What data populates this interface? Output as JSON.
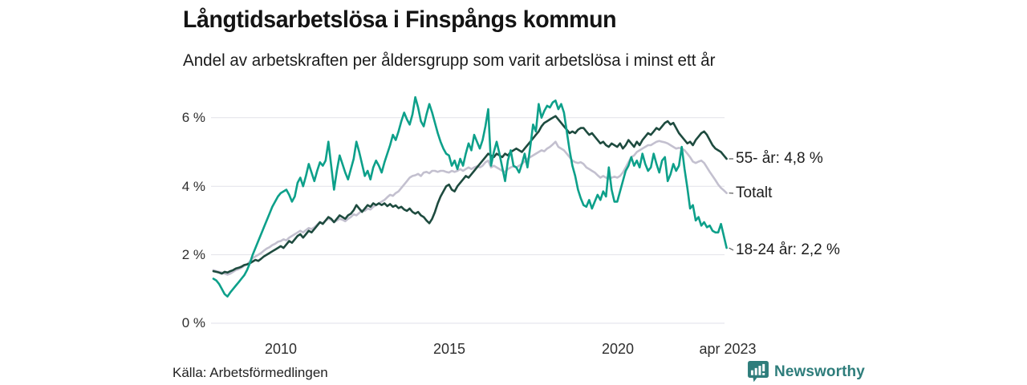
{
  "theme": {
    "background": "#ffffff",
    "grid_color": "#e2e2e8",
    "axis_text_color": "#2e2e2e",
    "connector_color": "#555555",
    "brand_color": "#2e7d7b",
    "series_teal": "#0da08a",
    "series_dark_green": "#1e4b3f",
    "series_gray": "#c3c0cf"
  },
  "brand": {
    "name": "Newsworthy",
    "logo_icon": "speech-bubble-bar-chart-icon"
  },
  "chart_data": {
    "type": "line",
    "title": "Långtidsarbetslösa i Finspångs kommun",
    "subtitle": "Andel av arbetskraften per åldersgrupp som varit arbetslösa i minst ett år",
    "source": "Källa: Arbetsförmedlingen",
    "grid": "horizontal-only",
    "legend_position": "right-end-labels",
    "x_axis": {
      "frequency": "monthly",
      "start": "2008-01",
      "end": "2023-04",
      "ticks": [
        {
          "label": "2010"
        },
        {
          "label": "2015"
        },
        {
          "label": "2020"
        },
        {
          "label": "apr 2023"
        }
      ]
    },
    "y_axis": {
      "unit": "%",
      "range": [
        0,
        6.9
      ],
      "ticks": [
        {
          "label": "0 %",
          "value": 0
        },
        {
          "label": "2 %",
          "value": 2
        },
        {
          "label": "4 %",
          "value": 4
        },
        {
          "label": "6 %",
          "value": 6
        }
      ]
    },
    "series": [
      {
        "name": "55- år",
        "end_label": "55- år: 4,8 %",
        "end_value": 4.8,
        "color": "#1e4b3f",
        "values": [
          1.52,
          1.5,
          1.48,
          1.45,
          1.5,
          1.48,
          1.52,
          1.55,
          1.6,
          1.62,
          1.65,
          1.7,
          1.72,
          1.75,
          1.8,
          1.85,
          1.82,
          1.88,
          1.95,
          2.0,
          2.05,
          2.1,
          2.15,
          2.2,
          2.25,
          2.2,
          2.3,
          2.4,
          2.35,
          2.45,
          2.55,
          2.6,
          2.5,
          2.6,
          2.7,
          2.65,
          2.75,
          2.85,
          2.95,
          2.9,
          3.0,
          3.1,
          3.05,
          2.95,
          3.05,
          3.15,
          3.1,
          3.05,
          3.15,
          3.2,
          3.3,
          3.45,
          3.35,
          3.25,
          3.35,
          3.45,
          3.4,
          3.5,
          3.45,
          3.5,
          3.45,
          3.5,
          3.42,
          3.48,
          3.4,
          3.44,
          3.36,
          3.4,
          3.32,
          3.28,
          3.35,
          3.25,
          3.2,
          3.25,
          3.15,
          3.1,
          3.0,
          2.92,
          3.05,
          3.25,
          3.5,
          3.7,
          3.85,
          4.0,
          4.05,
          3.9,
          3.85,
          4.0,
          4.1,
          4.2,
          4.3,
          4.25,
          4.35,
          4.45,
          4.55,
          4.65,
          4.75,
          4.85,
          4.95,
          4.9,
          4.85,
          4.95,
          4.9,
          4.85,
          4.95,
          4.9,
          5.0,
          5.05,
          5.1,
          5.05,
          5.0,
          5.1,
          5.2,
          5.3,
          5.4,
          5.5,
          5.6,
          5.75,
          5.85,
          5.9,
          5.95,
          6.0,
          6.05,
          5.95,
          5.85,
          5.75,
          5.65,
          5.55,
          5.6,
          5.55,
          5.65,
          5.7,
          5.7,
          5.6,
          5.5,
          5.55,
          5.45,
          5.35,
          5.25,
          5.3,
          5.2,
          5.15,
          5.25,
          5.2,
          5.15,
          5.25,
          5.1,
          5.2,
          5.35,
          5.25,
          5.15,
          5.3,
          5.2,
          5.35,
          5.45,
          5.55,
          5.5,
          5.6,
          5.7,
          5.65,
          5.75,
          5.85,
          5.9,
          5.8,
          5.85,
          5.7,
          5.55,
          5.45,
          5.35,
          5.25,
          5.3,
          5.2,
          5.35,
          5.45,
          5.55,
          5.6,
          5.5,
          5.35,
          5.2,
          5.1,
          5.05,
          5.0,
          4.9,
          4.8
        ]
      },
      {
        "name": "Totalt",
        "end_label": "Totalt",
        "end_value": 3.8,
        "color": "#c3c0cf",
        "values": [
          1.55,
          1.52,
          1.5,
          1.48,
          1.45,
          1.42,
          1.45,
          1.5,
          1.55,
          1.58,
          1.62,
          1.68,
          1.72,
          1.8,
          1.9,
          1.95,
          2.0,
          2.05,
          2.12,
          2.18,
          2.22,
          2.28,
          2.32,
          2.38,
          2.4,
          2.45,
          2.42,
          2.5,
          2.55,
          2.6,
          2.65,
          2.7,
          2.65,
          2.72,
          2.78,
          2.75,
          2.8,
          2.88,
          2.95,
          2.92,
          3.0,
          3.05,
          3.02,
          2.95,
          3.0,
          3.05,
          3.02,
          2.98,
          3.05,
          3.1,
          3.18,
          3.15,
          3.22,
          3.3,
          3.28,
          3.35,
          3.32,
          3.4,
          3.45,
          3.5,
          3.55,
          3.6,
          3.68,
          3.75,
          3.72,
          3.8,
          3.85,
          3.95,
          4.05,
          4.15,
          4.25,
          4.3,
          4.32,
          4.36,
          4.3,
          4.4,
          4.42,
          4.38,
          4.45,
          4.45,
          4.42,
          4.45,
          4.45,
          4.42,
          4.4,
          4.45,
          4.42,
          4.45,
          4.5,
          4.45,
          4.5,
          4.55,
          4.5,
          4.55,
          4.58,
          4.55,
          4.6,
          4.7,
          4.75,
          4.55,
          4.6,
          4.55,
          4.5,
          4.45,
          4.42,
          4.5,
          4.55,
          4.58,
          4.55,
          4.6,
          4.65,
          4.72,
          4.8,
          4.85,
          4.9,
          4.95,
          5.0,
          5.05,
          5.02,
          5.1,
          5.15,
          5.22,
          5.3,
          5.15,
          5.1,
          5.05,
          4.95,
          4.85,
          4.75,
          4.7,
          4.68,
          4.7,
          4.65,
          4.55,
          4.5,
          4.45,
          4.4,
          4.32,
          4.25,
          4.3,
          4.25,
          4.22,
          4.25,
          4.28,
          4.25,
          4.3,
          4.4,
          4.55,
          4.7,
          4.85,
          4.9,
          5.0,
          5.05,
          5.1,
          5.15,
          5.2,
          5.2,
          5.25,
          5.3,
          5.32,
          5.3,
          5.28,
          5.25,
          5.2,
          5.15,
          5.1,
          5.12,
          5.1,
          5.05,
          4.95,
          4.85,
          4.72,
          4.68,
          4.72,
          4.75,
          4.68,
          4.55,
          4.42,
          4.3,
          4.18,
          4.05,
          3.95,
          3.88,
          3.8
        ]
      },
      {
        "name": "18-24 år",
        "end_label": "18-24 år: 2,2 %",
        "end_value": 2.2,
        "color": "#0da08a",
        "values": [
          1.3,
          1.25,
          1.15,
          1.0,
          0.85,
          0.78,
          0.9,
          1.0,
          1.1,
          1.2,
          1.3,
          1.4,
          1.55,
          1.75,
          2.0,
          2.2,
          2.4,
          2.6,
          2.8,
          3.0,
          3.2,
          3.4,
          3.55,
          3.7,
          3.8,
          3.85,
          3.9,
          3.75,
          3.55,
          3.7,
          4.1,
          4.25,
          4.0,
          4.3,
          4.65,
          4.4,
          4.15,
          4.45,
          4.7,
          4.6,
          4.75,
          5.3,
          4.6,
          3.9,
          4.45,
          4.9,
          4.65,
          4.4,
          4.2,
          4.5,
          4.8,
          5.3,
          5.0,
          4.65,
          4.3,
          4.45,
          4.2,
          4.55,
          4.75,
          4.6,
          4.4,
          4.7,
          4.95,
          5.2,
          5.5,
          5.35,
          5.6,
          5.9,
          6.15,
          5.95,
          5.8,
          6.1,
          6.6,
          6.3,
          5.9,
          5.75,
          6.1,
          6.4,
          6.15,
          5.85,
          5.55,
          5.3,
          5.1,
          4.95,
          4.9,
          4.6,
          4.75,
          4.5,
          4.8,
          4.6,
          4.95,
          5.25,
          5.05,
          5.5,
          5.3,
          5.1,
          5.35,
          5.75,
          6.25,
          4.6,
          5.0,
          5.3,
          4.95,
          4.55,
          4.15,
          4.75,
          5.05,
          4.6,
          4.55,
          4.4,
          4.65,
          4.95,
          4.55,
          5.15,
          5.8,
          5.6,
          6.4,
          6.0,
          6.2,
          6.35,
          6.3,
          6.45,
          6.5,
          6.25,
          6.4,
          6.15,
          5.6,
          5.05,
          4.6,
          4.3,
          3.9,
          3.65,
          3.45,
          3.4,
          3.6,
          3.35,
          3.55,
          3.75,
          3.6,
          3.85,
          3.7,
          4.55,
          3.9,
          3.55,
          3.55,
          3.85,
          4.15,
          4.45,
          4.6,
          4.85,
          4.6,
          4.75,
          4.55,
          4.95,
          4.65,
          4.45,
          4.55,
          4.95,
          4.65,
          4.4,
          4.75,
          4.85,
          4.15,
          4.35,
          4.65,
          4.45,
          4.6,
          5.15,
          4.5,
          3.95,
          3.35,
          3.45,
          3.0,
          3.1,
          2.85,
          2.95,
          2.8,
          2.85,
          2.7,
          2.65,
          2.65,
          2.9,
          2.55,
          2.2
        ]
      }
    ]
  }
}
